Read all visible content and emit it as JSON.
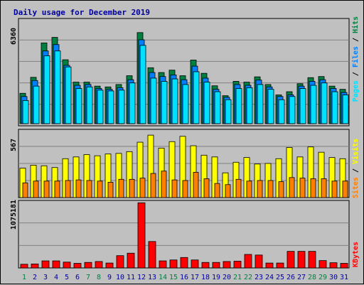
{
  "chart_data": [
    {
      "type": "bar",
      "title": "Daily usage for December 2019",
      "x": [
        "1",
        "2",
        "3",
        "4",
        "5",
        "6",
        "7",
        "8",
        "9",
        "10",
        "11",
        "12",
        "13",
        "14",
        "15",
        "16",
        "17",
        "18",
        "19",
        "20",
        "21",
        "22",
        "23",
        "24",
        "25",
        "26",
        "27",
        "28",
        "29",
        "30",
        "31"
      ],
      "weekend_days": [
        "1",
        "7",
        "8",
        "14",
        "15",
        "21",
        "22",
        "28",
        "29"
      ],
      "ymax_label": "6360",
      "ylabels": [
        "Hits",
        "Files",
        "Pages"
      ],
      "series": [
        {
          "name": "Hits",
          "color": "#008040",
          "values": [
            1900,
            2900,
            5050,
            5400,
            4000,
            2600,
            2600,
            2350,
            2300,
            2450,
            3000,
            5700,
            3500,
            3200,
            3350,
            3000,
            3980,
            3150,
            2370,
            1750,
            2650,
            2600,
            2930,
            2450,
            1800,
            2000,
            2500,
            2880,
            2950,
            2350,
            2150
          ]
        },
        {
          "name": "Files",
          "color": "#0080ff",
          "values": [
            1700,
            2700,
            4550,
            4950,
            3650,
            2400,
            2450,
            2200,
            2150,
            2250,
            2750,
            5250,
            3200,
            2950,
            3050,
            2750,
            3600,
            2850,
            2150,
            1650,
            2450,
            2400,
            2730,
            2300,
            1700,
            1800,
            2350,
            2650,
            2750,
            2200,
            1950
          ]
        },
        {
          "name": "Pages",
          "color": "#00e0ff",
          "values": [
            1450,
            2350,
            4250,
            4550,
            3550,
            2200,
            2300,
            2100,
            2050,
            2100,
            2550,
            4900,
            2850,
            2650,
            2800,
            2450,
            3250,
            2600,
            2000,
            1500,
            2200,
            2250,
            2450,
            2150,
            1500,
            1700,
            2200,
            2400,
            2550,
            2000,
            1800
          ]
        }
      ]
    },
    {
      "type": "bar",
      "x": [
        "1",
        "2",
        "3",
        "4",
        "5",
        "6",
        "7",
        "8",
        "9",
        "10",
        "11",
        "12",
        "13",
        "14",
        "15",
        "16",
        "17",
        "18",
        "19",
        "20",
        "21",
        "22",
        "23",
        "24",
        "25",
        "26",
        "27",
        "28",
        "29",
        "30",
        "31"
      ],
      "ymax_label": "567",
      "ylabels": [
        "Visits",
        "Sites"
      ],
      "series": [
        {
          "name": "Visits",
          "color": "#ffff00",
          "values": [
            250,
            275,
            270,
            255,
            330,
            345,
            365,
            355,
            370,
            375,
            390,
            470,
            530,
            420,
            475,
            520,
            440,
            360,
            345,
            210,
            300,
            340,
            285,
            290,
            330,
            425,
            345,
            430,
            385,
            340,
            330
          ]
        },
        {
          "name": "Sites",
          "color": "#ff8000",
          "values": [
            125,
            140,
            140,
            140,
            145,
            150,
            145,
            140,
            130,
            155,
            155,
            165,
            205,
            225,
            150,
            145,
            215,
            160,
            120,
            110,
            155,
            140,
            145,
            145,
            135,
            170,
            165,
            160,
            160,
            140,
            140
          ]
        }
      ]
    },
    {
      "type": "bar",
      "x": [
        "1",
        "2",
        "3",
        "4",
        "5",
        "6",
        "7",
        "8",
        "9",
        "10",
        "11",
        "12",
        "13",
        "14",
        "15",
        "16",
        "17",
        "18",
        "19",
        "20",
        "21",
        "22",
        "23",
        "24",
        "25",
        "26",
        "27",
        "28",
        "29",
        "30",
        "31"
      ],
      "ymax_label": "1075181",
      "ylabels": [
        "KBytes"
      ],
      "series": [
        {
          "name": "KBytes",
          "color": "#ff0000",
          "values": [
            60000,
            65000,
            115000,
            115000,
            95000,
            75000,
            90000,
            105000,
            80000,
            200000,
            240000,
            1060000,
            430000,
            115000,
            130000,
            170000,
            130000,
            90000,
            90000,
            105000,
            110000,
            220000,
            210000,
            80000,
            80000,
            270000,
            270000,
            270000,
            120000,
            85000,
            75000
          ]
        }
      ]
    }
  ]
}
